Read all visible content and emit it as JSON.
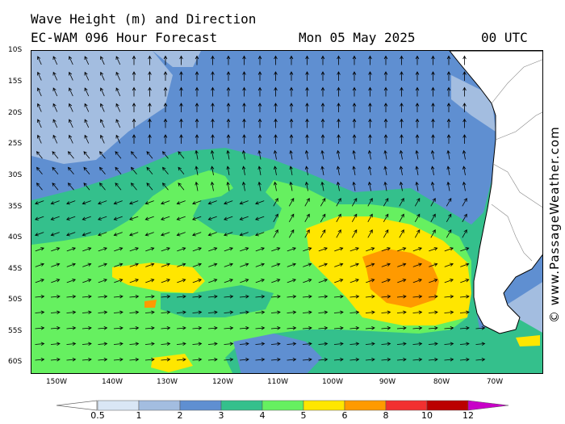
{
  "title": {
    "line1": "Wave Height (m) and Direction",
    "line2": "EC-WAM 096 Hour Forecast",
    "date": "Mon 05 May 2025",
    "time": "00 UTC"
  },
  "watermark": "© www.PassageWeather.com",
  "lat_labels": [
    "10S",
    "15S",
    "20S",
    "25S",
    "30S",
    "35S",
    "40S",
    "45S",
    "50S",
    "55S",
    "60S"
  ],
  "lon_labels": [
    "150W",
    "140W",
    "130W",
    "120W",
    "110W",
    "100W",
    "90W",
    "80W",
    "70W"
  ],
  "legend": {
    "labels": [
      "0.5",
      "1",
      "2",
      "3",
      "4",
      "5",
      "6",
      "8",
      "10",
      "12"
    ],
    "colors": [
      "#d9e6f5",
      "#a3bde0",
      "#5f8fd1",
      "#34c08c",
      "#66f060",
      "#ffe600",
      "#ff9a00",
      "#f23030",
      "#bb0000",
      "#c800c8"
    ]
  },
  "colors": {
    "land": "#ffffff",
    "band_05_1": "#d9e6f5",
    "band_1_2": "#a3bde0",
    "band_2_3": "#5f8fd1",
    "band_3_4": "#34c08c",
    "band_4_5": "#66f060",
    "band_5_6": "#ffe600",
    "band_6_8": "#ff9a00"
  }
}
